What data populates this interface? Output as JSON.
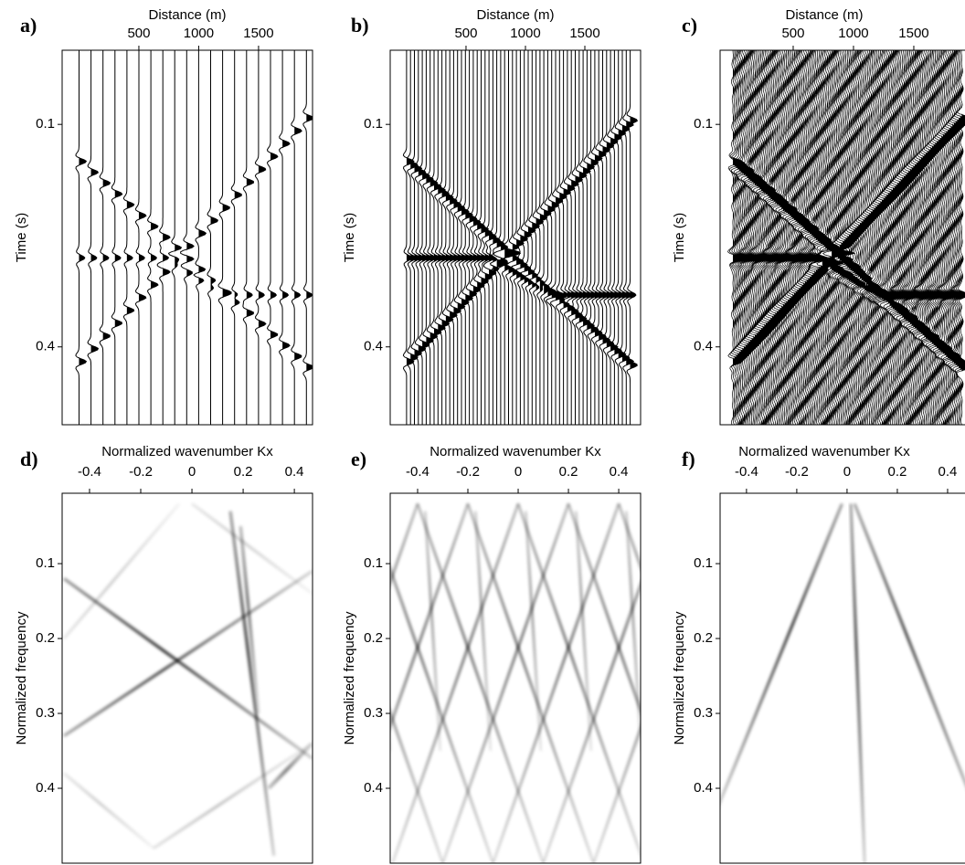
{
  "chart_data": [
    {
      "type": "wiggle",
      "title": "a)",
      "xlabel": "Distance (m)",
      "ylabel": "Time (s)",
      "xlim": [
        -141,
        1951
      ],
      "ylim": [
        0,
        0.505
      ],
      "xticks": [
        500,
        1000,
        1500
      ],
      "yticks": [
        0.1,
        0.4
      ]
    },
    {
      "type": "wiggle",
      "title": "b)",
      "xlabel": "Distance (m)",
      "ylabel": "Time (s)",
      "xlim": [
        -138,
        1969
      ],
      "ylim": [
        0,
        0.505
      ],
      "xticks": [
        500,
        1000,
        1500
      ],
      "yticks": [
        0.1,
        0.4
      ]
    },
    {
      "type": "wiggle",
      "title": "c)",
      "xlabel": "Distance (m)",
      "ylabel": "Time (s)",
      "xlim": [
        -106,
        1970
      ],
      "ylim": [
        0,
        0.505
      ],
      "xticks": [
        500,
        1000,
        1500
      ],
      "yticks": [
        0.1,
        0.4
      ]
    },
    {
      "type": "spectrum",
      "title": "d)",
      "xlabel": "Normalized wavenumber Kx",
      "ylabel": "Normalized frequency",
      "xlim": [
        -0.507,
        0.471
      ],
      "ylim": [
        0.006,
        0.5
      ],
      "xticks": [
        -0.4,
        -0.2,
        0,
        0.2,
        0.4
      ],
      "yticks": [
        0.1,
        0.2,
        0.3,
        0.4
      ]
    },
    {
      "type": "spectrum",
      "title": "e)",
      "xlabel": "Normalized wavenumber Kx",
      "ylabel": "Normalized frequency",
      "xlim": [
        -0.509,
        0.487
      ],
      "ylim": [
        0.006,
        0.5
      ],
      "xticks": [
        -0.4,
        -0.2,
        0,
        0.2,
        0.4
      ],
      "yticks": [
        0.1,
        0.2,
        0.3,
        0.4
      ]
    },
    {
      "type": "spectrum",
      "title": "f)",
      "xlabel": "Normalized wavenumber Kx",
      "ylabel": "Normalized frequency",
      "xlim": [
        -0.505,
        0.491
      ],
      "ylim": [
        0.006,
        0.5
      ],
      "xticks": [
        -0.4,
        -0.2,
        0,
        0.2,
        0.4
      ],
      "yticks": [
        0.1,
        0.2,
        0.3,
        0.4
      ]
    }
  ]
}
